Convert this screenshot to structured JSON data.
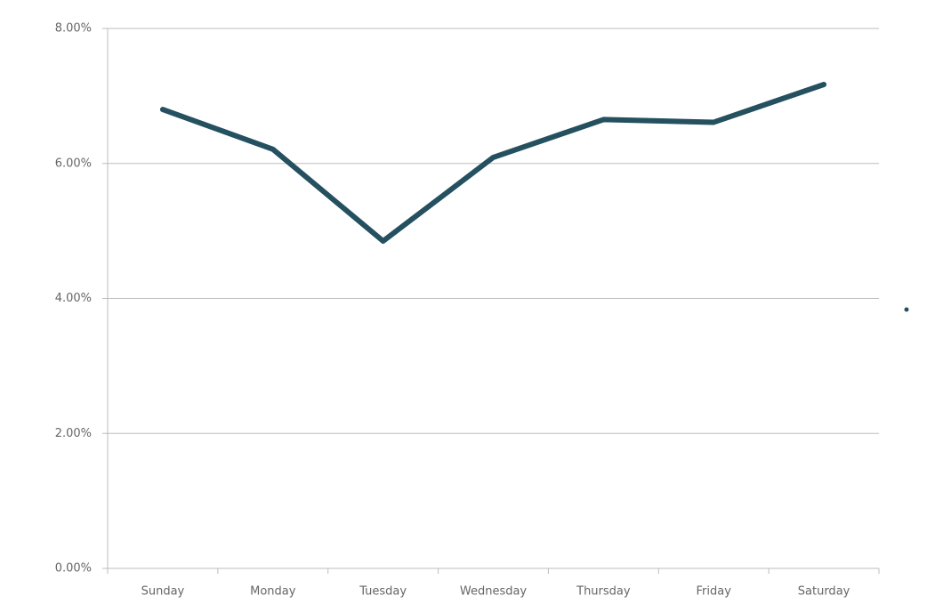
{
  "chart_data": {
    "type": "line",
    "categories": [
      "Sunday",
      "Monday",
      "Tuesday",
      "Wednesday",
      "Thursday",
      "Friday",
      "Saturday"
    ],
    "values": [
      6.8,
      6.21,
      4.85,
      6.09,
      6.65,
      6.61,
      7.17
    ],
    "color": "#24505f",
    "ylim": [
      0,
      8
    ],
    "yticks": [
      {
        "value": 0,
        "label": "0.00%"
      },
      {
        "value": 2,
        "label": "2.00%"
      },
      {
        "value": 4,
        "label": "4.00%"
      },
      {
        "value": 6,
        "label": "6.00%"
      },
      {
        "value": 8,
        "label": "8.00%"
      }
    ],
    "grid": true
  }
}
